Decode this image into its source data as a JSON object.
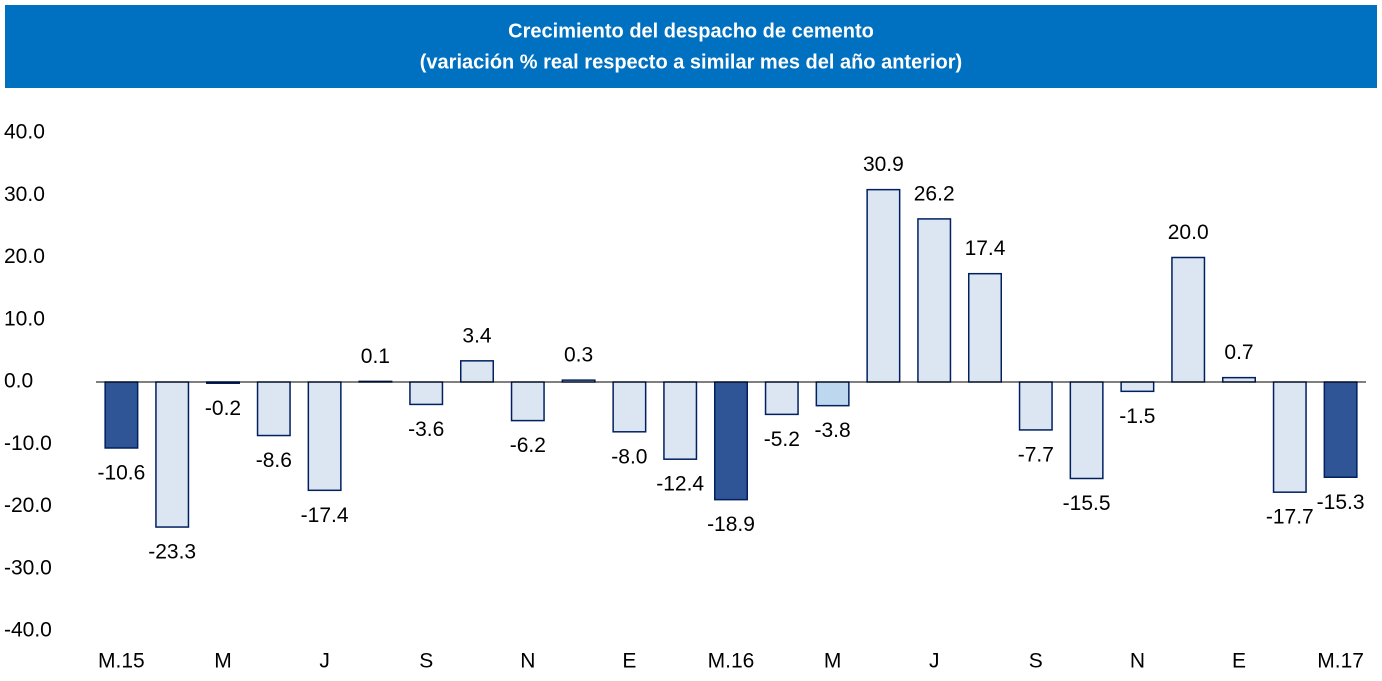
{
  "chart_data": {
    "type": "bar",
    "title": "Crecimiento del despacho de cemento",
    "subtitle": "(variación % real respecto a similar mes del año anterior)",
    "categories": [
      "M.15",
      null,
      "M",
      null,
      "J",
      null,
      "S",
      null,
      "N",
      null,
      "E",
      null,
      "M.16",
      null,
      "M",
      null,
      "J",
      null,
      "S",
      null,
      "N",
      null,
      "E",
      null,
      "M.17"
    ],
    "values": [
      -10.6,
      -23.3,
      -0.2,
      -8.6,
      -17.4,
      0.1,
      -3.6,
      3.4,
      -6.2,
      0.3,
      -8.0,
      -12.4,
      -18.9,
      -5.2,
      -3.8,
      30.9,
      26.2,
      17.4,
      -7.7,
      -15.5,
      -1.5,
      20.0,
      0.7,
      -17.7,
      -15.3
    ],
    "value_labels": [
      "-10.6",
      "-23.3",
      "-0.2",
      "-8.6",
      "-17.4",
      "0.1",
      "-3.6",
      "3.4",
      "-6.2",
      "0.3",
      "-8.0",
      "-12.4",
      "-18.9",
      "-5.2",
      "-3.8",
      "30.9",
      "26.2",
      "17.4",
      "-7.7",
      "-15.5",
      "-1.5",
      "20.0",
      "0.7",
      "-17.7",
      "-15.3"
    ],
    "colors": [
      "#2f5597",
      "#dce6f2",
      "#dce6f2",
      "#dce6f2",
      "#dce6f2",
      "#dce6f2",
      "#dce6f2",
      "#dce6f2",
      "#dce6f2",
      "#dce6f2",
      "#dce6f2",
      "#dce6f2",
      "#2f5597",
      "#dce6f2",
      "#bdd7ee",
      "#dce6f2",
      "#dce6f2",
      "#dce6f2",
      "#dce6f2",
      "#dce6f2",
      "#dce6f2",
      "#dce6f2",
      "#dce6f2",
      "#dce6f2",
      "#2f5597"
    ],
    "ylim": [
      -40,
      40
    ],
    "yticks": [
      {
        "value": -40,
        "label": "-40.0"
      },
      {
        "value": -30,
        "label": "-30.0"
      },
      {
        "value": -20,
        "label": "-20.0"
      },
      {
        "value": -10,
        "label": "-10.0"
      },
      {
        "value": 0,
        "label": "0.0"
      },
      {
        "value": 10,
        "label": "10.0"
      },
      {
        "value": 20,
        "label": "20.0"
      },
      {
        "value": 30,
        "label": "30.0"
      },
      {
        "value": 40,
        "label": "40.0"
      }
    ],
    "grid": false
  }
}
